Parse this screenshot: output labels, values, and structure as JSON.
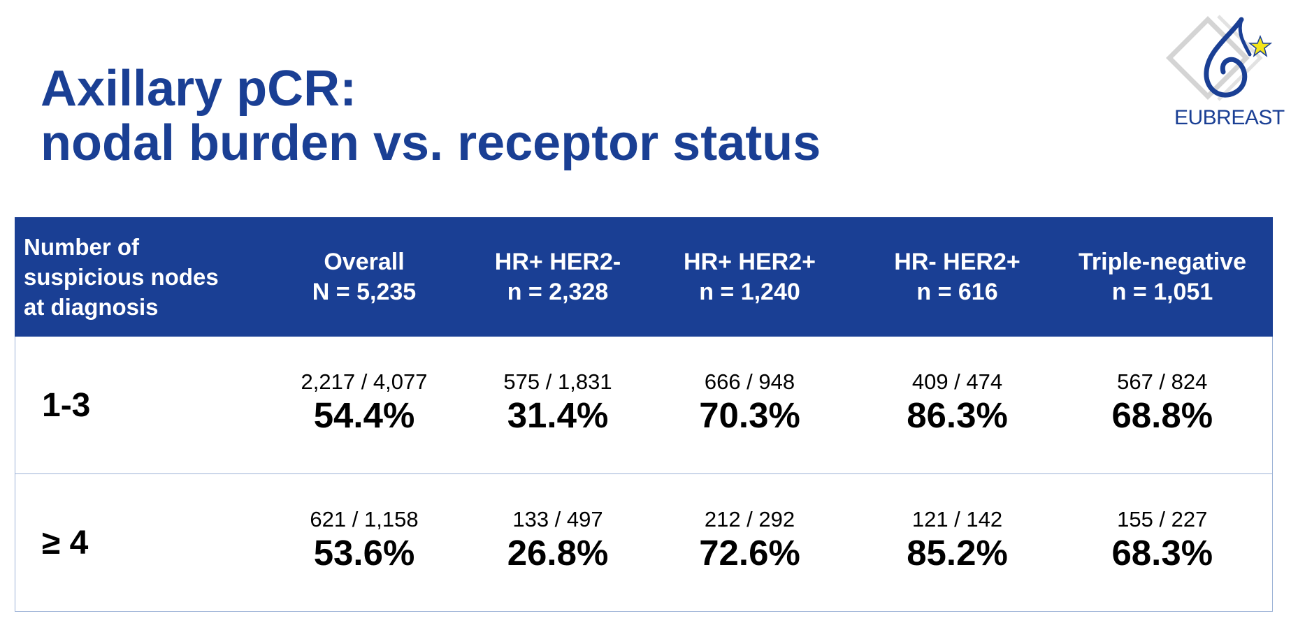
{
  "title": {
    "line1": "Axillary pCR:",
    "line2": "nodal burden vs. receptor status"
  },
  "logo": {
    "text": "EUBREAST",
    "colors": {
      "brand": "#1a3f94",
      "star": "#f4e51a"
    }
  },
  "table": {
    "row_header": [
      "Number of",
      "suspicious nodes",
      "at diagnosis"
    ],
    "columns": [
      {
        "label": "Overall",
        "n": "N = 5,235"
      },
      {
        "label": "HR+ HER2-",
        "n": "n = 2,328"
      },
      {
        "label": "HR+ HER2+",
        "n": "n = 1,240"
      },
      {
        "label": "HR- HER2+",
        "n": "n = 616"
      },
      {
        "label": "Triple-negative",
        "n": "n = 1,051"
      }
    ],
    "rows": [
      {
        "label": "1-3",
        "cells": [
          {
            "fraction": "2,217 / 4,077",
            "percent": "54.4%"
          },
          {
            "fraction": "575 / 1,831",
            "percent": "31.4%"
          },
          {
            "fraction": "666 / 948",
            "percent": "70.3%"
          },
          {
            "fraction": "409 / 474",
            "percent": "86.3%"
          },
          {
            "fraction": "567 / 824",
            "percent": "68.8%"
          }
        ]
      },
      {
        "label": "≥ 4",
        "cells": [
          {
            "fraction": "621 / 1,158",
            "percent": "53.6%"
          },
          {
            "fraction": "133 / 497",
            "percent": "26.8%"
          },
          {
            "fraction": "212 / 292",
            "percent": "72.6%"
          },
          {
            "fraction": "121 / 142",
            "percent": "85.2%"
          },
          {
            "fraction": "155 / 227",
            "percent": "68.3%"
          }
        ]
      }
    ]
  },
  "colors": {
    "header_bg": "#1a3f94",
    "title_text": "#1a3f94",
    "grid_line": "#9cb2d6"
  }
}
